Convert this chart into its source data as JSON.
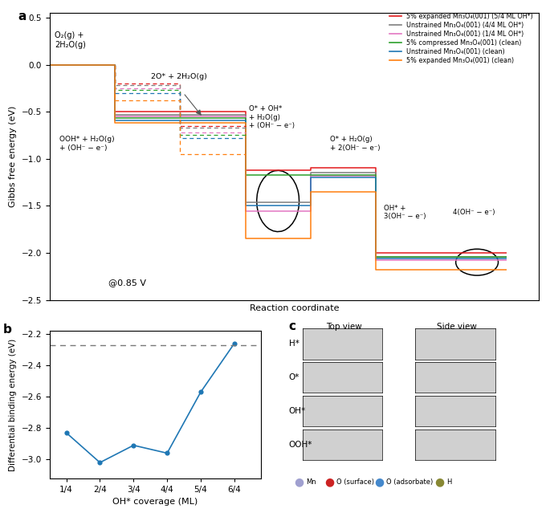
{
  "panel_a": {
    "xlabel": "Reaction coordinate",
    "ylabel": "Gibbs free energy (eV)",
    "ylim": [
      -2.5,
      0.55
    ],
    "xlim": [
      0,
      7.5
    ],
    "series": [
      {
        "label": "5% expanded Mn₃O₄(001) (5/4 ML OH*)",
        "color": "#e31a1c",
        "x": [
          0,
          1,
          1,
          2,
          2,
          3,
          3,
          4,
          4,
          5,
          5,
          6,
          6,
          7
        ],
        "y": [
          0.0,
          0.0,
          -0.5,
          -0.5,
          -0.5,
          -0.5,
          -1.12,
          -1.12,
          -1.1,
          -1.1,
          -2.0,
          -2.0,
          -2.0,
          -2.0
        ]
      },
      {
        "label": "Unstrained Mn₃O₄(001) (4/4 ML OH*)",
        "color": "#7f7f7f",
        "x": [
          0,
          1,
          1,
          2,
          2,
          3,
          3,
          4,
          4,
          5,
          5,
          6,
          6,
          7
        ],
        "y": [
          0.0,
          0.0,
          -0.53,
          -0.53,
          -0.53,
          -0.53,
          -1.46,
          -1.46,
          -1.15,
          -1.15,
          -2.04,
          -2.04,
          -2.04,
          -2.04
        ]
      },
      {
        "label": "Unstrained Mn₃O₄(001) (1/4 ML OH*)",
        "color": "#e377c2",
        "x": [
          0,
          1,
          1,
          2,
          2,
          3,
          3,
          4,
          4,
          5,
          5,
          6,
          6,
          7
        ],
        "y": [
          0.0,
          0.0,
          -0.55,
          -0.55,
          -0.55,
          -0.55,
          -1.56,
          -1.56,
          -1.18,
          -1.18,
          -2.08,
          -2.08,
          -2.08,
          -2.08
        ]
      },
      {
        "label": "5% compressed Mn₃O₄(001) (clean)",
        "color": "#2ca02c",
        "x": [
          0,
          1,
          1,
          2,
          2,
          3,
          3,
          4,
          4,
          5,
          5,
          6,
          6,
          7
        ],
        "y": [
          0.0,
          0.0,
          -0.57,
          -0.57,
          -0.57,
          -0.57,
          -1.17,
          -1.17,
          -1.17,
          -1.17,
          -2.04,
          -2.04,
          -2.04,
          -2.04
        ]
      },
      {
        "label": "Unstrained Mn₃O₄(001) (clean)",
        "color": "#1f77b4",
        "x": [
          0,
          1,
          1,
          2,
          2,
          3,
          3,
          4,
          4,
          5,
          5,
          6,
          6,
          7
        ],
        "y": [
          0.0,
          0.0,
          -0.59,
          -0.59,
          -0.59,
          -0.59,
          -1.5,
          -1.5,
          -1.2,
          -1.2,
          -2.06,
          -2.06,
          -2.06,
          -2.06
        ]
      },
      {
        "label": "5% expanded Mn₃O₄(001) (clean)",
        "color": "#ff7f0e",
        "x": [
          0,
          1,
          1,
          2,
          2,
          3,
          3,
          4,
          4,
          5,
          5,
          6,
          6,
          7
        ],
        "y": [
          0.0,
          0.0,
          -0.62,
          -0.62,
          -0.62,
          -0.62,
          -1.85,
          -1.85,
          -1.35,
          -1.35,
          -2.18,
          -2.18,
          -2.18,
          -2.18
        ]
      }
    ],
    "dashed_series": [
      {
        "color": "#e31a1c",
        "x": [
          1,
          1,
          2,
          2,
          3,
          3
        ],
        "y": [
          0.0,
          -0.2,
          -0.2,
          -0.65,
          -0.65,
          -0.65
        ]
      },
      {
        "color": "#7f7f7f",
        "x": [
          1,
          1,
          2,
          2,
          3,
          3
        ],
        "y": [
          0.0,
          -0.22,
          -0.22,
          -0.67,
          -0.67,
          -0.67
        ]
      },
      {
        "color": "#e377c2",
        "x": [
          1,
          1,
          2,
          2,
          3,
          3
        ],
        "y": [
          0.0,
          -0.25,
          -0.25,
          -0.72,
          -0.72,
          -0.72
        ]
      },
      {
        "color": "#2ca02c",
        "x": [
          1,
          1,
          2,
          2,
          3,
          3
        ],
        "y": [
          0.0,
          -0.27,
          -0.27,
          -0.75,
          -0.75,
          -0.75
        ]
      },
      {
        "color": "#1f77b4",
        "x": [
          1,
          1,
          2,
          2,
          3,
          3
        ],
        "y": [
          0.0,
          -0.3,
          -0.3,
          -0.78,
          -0.78,
          -0.78
        ]
      },
      {
        "color": "#ff7f0e",
        "x": [
          1,
          1,
          2,
          2,
          3,
          3
        ],
        "y": [
          0.0,
          -0.38,
          -0.38,
          -0.95,
          -0.95,
          -0.95
        ]
      }
    ]
  },
  "panel_b": {
    "xlabel": "OH* coverage (ML)",
    "ylabel": "Differential binding energy (eV)",
    "ylim": [
      -3.12,
      -2.18
    ],
    "xlim": [
      0.5,
      6.8
    ],
    "dashed_y": -2.27,
    "x": [
      1,
      2,
      3,
      4,
      5,
      6
    ],
    "y": [
      -2.83,
      -3.02,
      -2.91,
      -2.96,
      -2.57,
      -2.26
    ],
    "xtick_labels": [
      "1/4",
      "2/4",
      "3/4",
      "4/4",
      "5/4",
      "6/4"
    ],
    "xtick_vals": [
      1,
      2,
      3,
      4,
      5,
      6
    ],
    "color": "#1f77b4"
  },
  "legend_entries": [
    {
      "label": "5% expanded Mn₃O₄(001) (5/4 ML OH*)",
      "color": "#e31a1c"
    },
    {
      "label": "Unstrained Mn₃O₄(001) (4/4 ML OH*)",
      "color": "#7f7f7f"
    },
    {
      "label": "Unstrained Mn₃O₄(001) (1/4 ML OH*)",
      "color": "#e377c2"
    },
    {
      "label": "5% compressed Mn₃O₄(001) (clean)",
      "color": "#2ca02c"
    },
    {
      "label": "Unstrained Mn₃O₄(001) (clean)",
      "color": "#1f77b4"
    },
    {
      "label": "5% expanded Mn₃O₄(001) (clean)",
      "color": "#ff7f0e"
    }
  ],
  "panel_c": {
    "title": "c",
    "top_view_label": "Top view",
    "side_view_label": "Side view",
    "row_labels": [
      "H*",
      "O*",
      "OH*",
      "OOH*"
    ],
    "legend_items": [
      {
        "label": "Mn",
        "color": "#a0a0d0"
      },
      {
        "label": "O (surface)",
        "color": "#cc2222"
      },
      {
        "label": "O (adsorbate)",
        "color": "#4488cc"
      },
      {
        "label": "H",
        "color": "#888833"
      }
    ]
  }
}
